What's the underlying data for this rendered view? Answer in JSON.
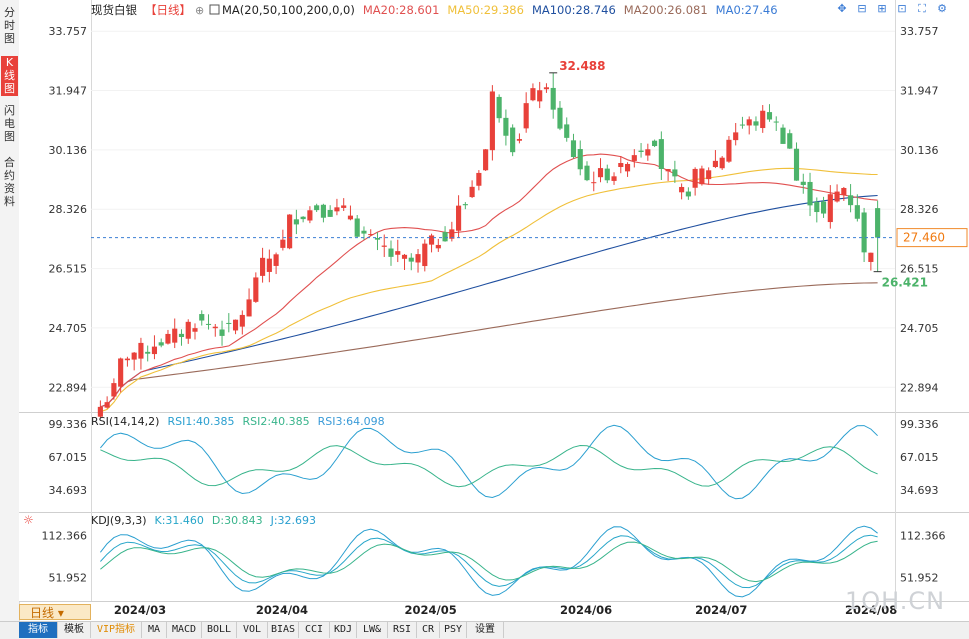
{
  "sidebar": {
    "items": [
      {
        "label": "分时图",
        "active": false
      },
      {
        "label": "K线图",
        "active": true
      },
      {
        "label": "闪电图",
        "active": false
      },
      {
        "label": "合约资料",
        "active": false
      }
    ]
  },
  "header": {
    "symbol": "现货白银",
    "period_tag": "【日线】",
    "ma_label": "MA(20,50,100,200,0,0)",
    "ma20": "MA20:28.601",
    "ma50": "MA50:29.386",
    "ma100": "MA100:28.746",
    "ma200": "MA200:26.081",
    "ma0": "MA0:27.46"
  },
  "main_axis": {
    "ticks": [
      "33.757",
      "31.947",
      "30.136",
      "28.326",
      "26.515",
      "24.705",
      "22.894"
    ]
  },
  "current_price": "27.460",
  "high_annotation": "32.488",
  "low_annotation": "26.421",
  "rsi": {
    "label": "RSI(14,14,2)",
    "rsi1": "RSI1:40.385",
    "rsi2": "RSI2:40.385",
    "rsi3": "RSI3:64.098",
    "ticks": [
      "99.336",
      "67.015",
      "34.693"
    ]
  },
  "kdj": {
    "label": "KDJ(9,3,3)",
    "k": "K:31.460",
    "d": "D:30.843",
    "j": "J:32.693",
    "ticks": [
      "112.366",
      "51.952"
    ]
  },
  "x_axis": [
    "2024/03",
    "2024/04",
    "2024/05",
    "2024/06",
    "2024/07",
    "2024/08"
  ],
  "period_button": "日线",
  "bottom_tabs": [
    "指标",
    "模板",
    "VIP指标",
    "MA",
    "MACD",
    "BOLL",
    "VOL",
    "BIAS",
    "CCI",
    "KDJ",
    "LW&",
    "RSI",
    "CR",
    "PSY",
    "设置"
  ],
  "watermark": "1QH.CN",
  "colors": {
    "up": "#e8413a",
    "down": "#4cb36a",
    "ma20": "#e05050",
    "ma50": "#f0c03a",
    "ma100": "#1f4f9f",
    "ma200": "#9a6a5a",
    "rsi1": "#2a9fd0",
    "rsi2": "#38b48b",
    "rsi3": "#3a9bd8"
  },
  "chart_data": {
    "type": "candlestick",
    "ylim": [
      22.2,
      34.1
    ],
    "anchors": [
      {
        "x": "2024/02/28",
        "close": 22.3
      },
      {
        "x": "2024/03/05",
        "close": 23.9
      },
      {
        "x": "2024/03/12",
        "close": 24.3
      },
      {
        "x": "2024/03/19",
        "close": 24.9
      },
      {
        "x": "2024/03/26",
        "close": 24.6
      },
      {
        "x": "2024/04/02",
        "close": 26.6
      },
      {
        "x": "2024/04/08",
        "close": 28.0
      },
      {
        "x": "2024/04/12",
        "close": 28.4
      },
      {
        "x": "2024/04/19",
        "close": 28.2
      },
      {
        "x": "2024/04/25",
        "close": 27.2
      },
      {
        "x": "2024/05/02",
        "close": 26.7
      },
      {
        "x": "2024/05/08",
        "close": 27.4
      },
      {
        "x": "2024/05/14",
        "close": 28.5
      },
      {
        "x": "2024/05/20",
        "close": 31.8
      },
      {
        "x": "2024/05/23",
        "close": 30.3
      },
      {
        "x": "2024/05/29",
        "close": 32.1
      },
      {
        "x": "2024/06/04",
        "close": 30.4
      },
      {
        "x": "2024/06/07",
        "close": 29.2
      },
      {
        "x": "2024/06/14",
        "close": 29.5
      },
      {
        "x": "2024/06/21",
        "close": 30.5
      },
      {
        "x": "2024/06/27",
        "close": 28.8
      },
      {
        "x": "2024/07/03",
        "close": 29.6
      },
      {
        "x": "2024/07/10",
        "close": 30.9
      },
      {
        "x": "2024/07/16",
        "close": 31.2
      },
      {
        "x": "2024/07/22",
        "close": 29.2
      },
      {
        "x": "2024/07/26",
        "close": 28.1
      },
      {
        "x": "2024/07/31",
        "close": 29.0
      },
      {
        "x": "2024/08/05",
        "close": 26.9
      },
      {
        "x": "2024/08/07",
        "close": 27.5
      }
    ],
    "ma_levels": {
      "ma20": 28.601,
      "ma50": 29.386,
      "ma100": 28.746,
      "ma200": 26.081,
      "ma0": 27.46
    },
    "high": 32.488,
    "low": 26.421,
    "last": 27.46
  }
}
